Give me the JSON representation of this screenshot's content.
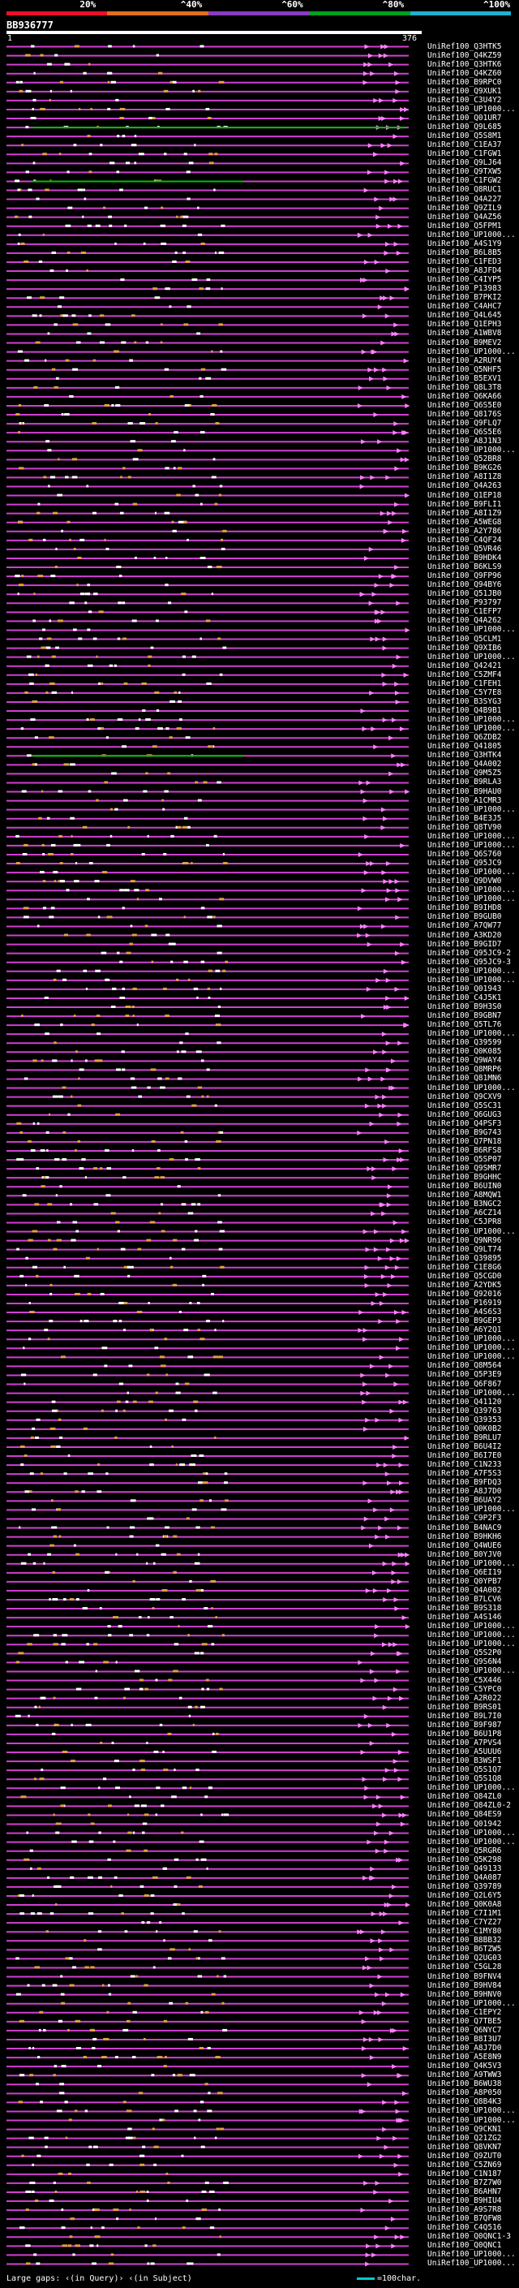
{
  "legend": {
    "labels": [
      "20%",
      "^40%",
      "^60%",
      "^80%",
      "^100%"
    ],
    "colors": [
      "#e8102a",
      "#e07020",
      "#8a3cc0",
      "#00a020",
      "#20b0d0"
    ]
  },
  "query": {
    "id": "BB936777",
    "start": "1",
    "end": "376"
  },
  "chart_data": {
    "type": "alignment-overview",
    "title": "BB936777",
    "query_length": 376,
    "x_range": [
      1,
      376
    ],
    "hit_colors": {
      "main": "#d040d0",
      "arrow": "#ff80ff",
      "high_identity": "#00c000",
      "gap_marker": "#e0a040"
    },
    "hits": [
      "UniRef100_Q3HTK5",
      "UniRef100_Q4KZ59",
      "UniRef100_Q3HTK6",
      "UniRef100_Q4KZ60",
      "UniRef100_B9RPC0",
      "UniRef100_Q9XUK1",
      "UniRef100_C3U4Y2",
      "UniRef100_UP1000...",
      "UniRef100_Q01UR7",
      "UniRef100_Q9L685",
      "UniRef100_Q5S8M1",
      "UniRef100_C1EA37",
      "UniRef100_C1FGW1",
      "UniRef100_Q9LJ64",
      "UniRef100_Q9TXW5",
      "UniRef100_C1FGW2",
      "UniRef100_Q8RUC1",
      "UniRef100_Q4A227",
      "UniRef100_Q9ZIL9",
      "UniRef100_Q4AZ56",
      "UniRef100_Q5FPM1",
      "UniRef100_UP1000...",
      "UniRef100_A4S1Y9",
      "UniRef100_B6L8B5",
      "UniRef100_C1FED3",
      "UniRef100_A8JFD4",
      "UniRef100_C4IYP5",
      "UniRef100_P13983",
      "UniRef100_B7PKI2",
      "UniRef100_C4AHC7",
      "UniRef100_Q4L645",
      "UniRef100_Q1EPH3",
      "UniRef100_A1WBV8",
      "UniRef100_B9MEV2",
      "UniRef100_UP1000...",
      "UniRef100_A2RUY4",
      "UniRef100_Q5NHF5",
      "UniRef100_B5EXV1",
      "UniRef100_Q8L3T8",
      "UniRef100_Q6KA66",
      "UniRef100_Q6S5E0",
      "UniRef100_Q8176S",
      "UniRef100_Q9FLQ7",
      "UniRef100_Q6S5E6",
      "UniRef100_A8J1N3",
      "UniRef100_UP1000...",
      "UniRef100_Q52BR8",
      "UniRef100_B9KG26",
      "UniRef100_A8I1Z8",
      "UniRef100_Q4A263",
      "UniRef100_Q1EP18",
      "UniRef100_B9FLI1",
      "UniRef100_A8I1Z9",
      "UniRef100_A5WEG8",
      "UniRef100_A2Y786",
      "UniRef100_C4QF24",
      "UniRef100_Q5VR46",
      "UniRef100_B9HDK4",
      "UniRef100_B6KLS9",
      "UniRef100_Q9FP96",
      "UniRef100_Q94BY6",
      "UniRef100_Q51JB0",
      "UniRef100_P93797",
      "UniRef100_C1EFP7",
      "UniRef100_Q4A262",
      "UniRef100_UP1000...",
      "UniRef100_Q5CLM1",
      "UniRef100_Q9XIB6",
      "UniRef100_UP1000...",
      "UniRef100_Q42421",
      "UniRef100_C5ZMF4",
      "UniRef100_C1FEH1",
      "UniRef100_C5Y7E8",
      "UniRef100_B3SYG3",
      "UniRef100_Q4B9B1",
      "UniRef100_UP1000...",
      "UniRef100_UP1000...",
      "UniRef100_Q6ZDB2",
      "UniRef100_Q41805",
      "UniRef100_Q3HTK4",
      "UniRef100_Q4A002",
      "UniRef100_Q9M5Z5",
      "UniRef100_B9RLA3",
      "UniRef100_B9HAU0",
      "UniRef100_A1CMR3",
      "UniRef100_UP1000...",
      "UniRef100_B4E3J5",
      "UniRef100_Q8TV90",
      "UniRef100_UP1000...",
      "UniRef100_UP1000...",
      "UniRef100_Q6S760",
      "UniRef100_Q95JC9",
      "UniRef100_UP1000...",
      "UniRef100_Q9DVW0",
      "UniRef100_UP1000...",
      "UniRef100_UP1000...",
      "UniRef100_B9IHD8",
      "UniRef100_B9GUB0",
      "UniRef100_A7QW77",
      "UniRef100_A3KD20",
      "UniRef100_B9GID7",
      "UniRef100_Q95JC9-2",
      "UniRef100_Q95JC9-3",
      "UniRef100_UP1000...",
      "UniRef100_UP1000...",
      "UniRef100_Q01943",
      "UniRef100_C4J5K1",
      "UniRef100_B9H3S0",
      "UniRef100_B9GBN7",
      "UniRef100_Q5TL76",
      "UniRef100_UP1000...",
      "UniRef100_Q39599",
      "UniRef100_Q0K085",
      "UniRef100_Q9WAY4",
      "UniRef100_Q8MRP6",
      "UniRef100_Q81MN6",
      "UniRef100_UP1000...",
      "UniRef100_Q9CXV9",
      "UniRef100_Q5SC31",
      "UniRef100_Q6GUG3",
      "UniRef100_Q4PSF3",
      "UniRef100_B9G743",
      "UniRef100_Q7PN18",
      "UniRef100_B6RFS8",
      "UniRef100_Q5SP07",
      "UniRef100_Q9SMR7",
      "UniRef100_B9GHHC",
      "UniRef100_B6UIN0",
      "UniRef100_A8MQW1",
      "UniRef100_B3NGC2",
      "UniRef100_A6CZ14",
      "UniRef100_C5JPR8",
      "UniRef100_UP1000...",
      "UniRef100_Q9NR96",
      "UniRef100_Q9LT74",
      "UniRef100_Q39895",
      "UniRef100_C1E8G6",
      "UniRef100_Q5CGD0",
      "UniRef100_A2YDK5",
      "UniRef100_Q92016",
      "UniRef100_P16919",
      "UniRef100_A4S6S3",
      "UniRef100_B9GEP3",
      "UniRef100_A6Y2Q1",
      "UniRef100_UP1000...",
      "UniRef100_UP1000...",
      "UniRef100_UP1000...",
      "UniRef100_Q8M564",
      "UniRef100_Q5P3E9",
      "UniRef100_Q6F867",
      "UniRef100_UP1000...",
      "UniRef100_Q41120",
      "UniRef100_Q39763",
      "UniRef100_Q39353",
      "UniRef100_Q0K0B2",
      "UniRef100_B9RLU7",
      "UniRef100_B6U4I2",
      "UniRef100_B6I7E0",
      "UniRef100_C1N233",
      "UniRef100_A7F5S3",
      "UniRef100_B9FDQ3",
      "UniRef100_A8J7D0",
      "UniRef100_B6UAY2",
      "UniRef100_UP1000...",
      "UniRef100_C9P2F3",
      "UniRef100_B4NAC9",
      "UniRef100_B9HKH6",
      "UniRef100_Q4WUE6",
      "UniRef100_B0YJV0",
      "UniRef100_UP1000...",
      "UniRef100_Q6EI19",
      "UniRef100_Q0YPB7",
      "UniRef100_Q4A002",
      "UniRef100_B7LCV6",
      "UniRef100_B9S318",
      "UniRef100_A4S146",
      "UniRef100_UP1000...",
      "UniRef100_UP1000...",
      "UniRef100_UP1000...",
      "UniRef100_Q5S2P0",
      "UniRef100_Q9S6N4",
      "UniRef100_UP1000...",
      "UniRef100_C5X446",
      "UniRef100_C5YPC0",
      "UniRef100_A2R022",
      "UniRef100_B9RS01",
      "UniRef100_B9L7I0",
      "UniRef100_B9F987",
      "UniRef100_B6U1P8",
      "UniRef100_A7PVS4",
      "UniRef100_A5UUU6",
      "UniRef100_B3WSF1",
      "UniRef100_Q5S1Q7",
      "UniRef100_Q5S1Q8",
      "UniRef100_UP1000...",
      "UniRef100_Q84ZL0",
      "UniRef100_Q84ZL0-2",
      "UniRef100_Q84ES9",
      "UniRef100_Q01942",
      "UniRef100_UP1000...",
      "UniRef100_UP1000...",
      "UniRef100_Q5RGR6",
      "UniRef100_Q5K298",
      "UniRef100_Q49133",
      "UniRef100_Q4A087",
      "UniRef100_Q39789",
      "UniRef100_Q2L6Y5",
      "UniRef100_Q0K0A8",
      "UniRef100_C7I1M1",
      "UniRef100_C7YZ27",
      "UniRef100_C1MY80",
      "UniRef100_B8BB32",
      "UniRef100_B6TZW5",
      "UniRef100_Q2UG03",
      "UniRef100_C5GL28",
      "UniRef100_B9FNV4",
      "UniRef100_B9HV84",
      "UniRef100_B9HNV0",
      "UniRef100_UP1000...",
      "UniRef100_C1EPY2",
      "UniRef100_Q7TBE5",
      "UniRef100_Q6NYC7",
      "UniRef100_B8I3U7",
      "UniRef100_A8J7D0",
      "UniRef100_A5E8N9",
      "UniRef100_Q4K5V3",
      "UniRef100_A9TWW3",
      "UniRef100_B6WU38",
      "UniRef100_A8P050",
      "UniRef100_Q8B4K3",
      "UniRef100_UP1000...",
      "UniRef100_UP1000...",
      "UniRef100_Q9CKN1",
      "UniRef100_Q21ZG2",
      "UniRef100_Q8VKN7",
      "UniRef100_Q9ZUT0",
      "UniRef100_C5ZN69",
      "UniRef100_C1N187",
      "UniRef100_B7Z7W0",
      "UniRef100_B6AHN7",
      "UniRef100_B9HIU4",
      "UniRef100_A9S7R8",
      "UniRef100_B7QFW8",
      "UniRef100_C4Q516",
      "UniRef100_Q0QNC1-3",
      "UniRef100_Q0QNC1",
      "UniRef100_UP1000...",
      "UniRef100_UP1000..."
    ]
  },
  "footer": {
    "text": "Large gaps: ‹(in Query)› ‹(in Subject)",
    "scale": "=100char."
  }
}
